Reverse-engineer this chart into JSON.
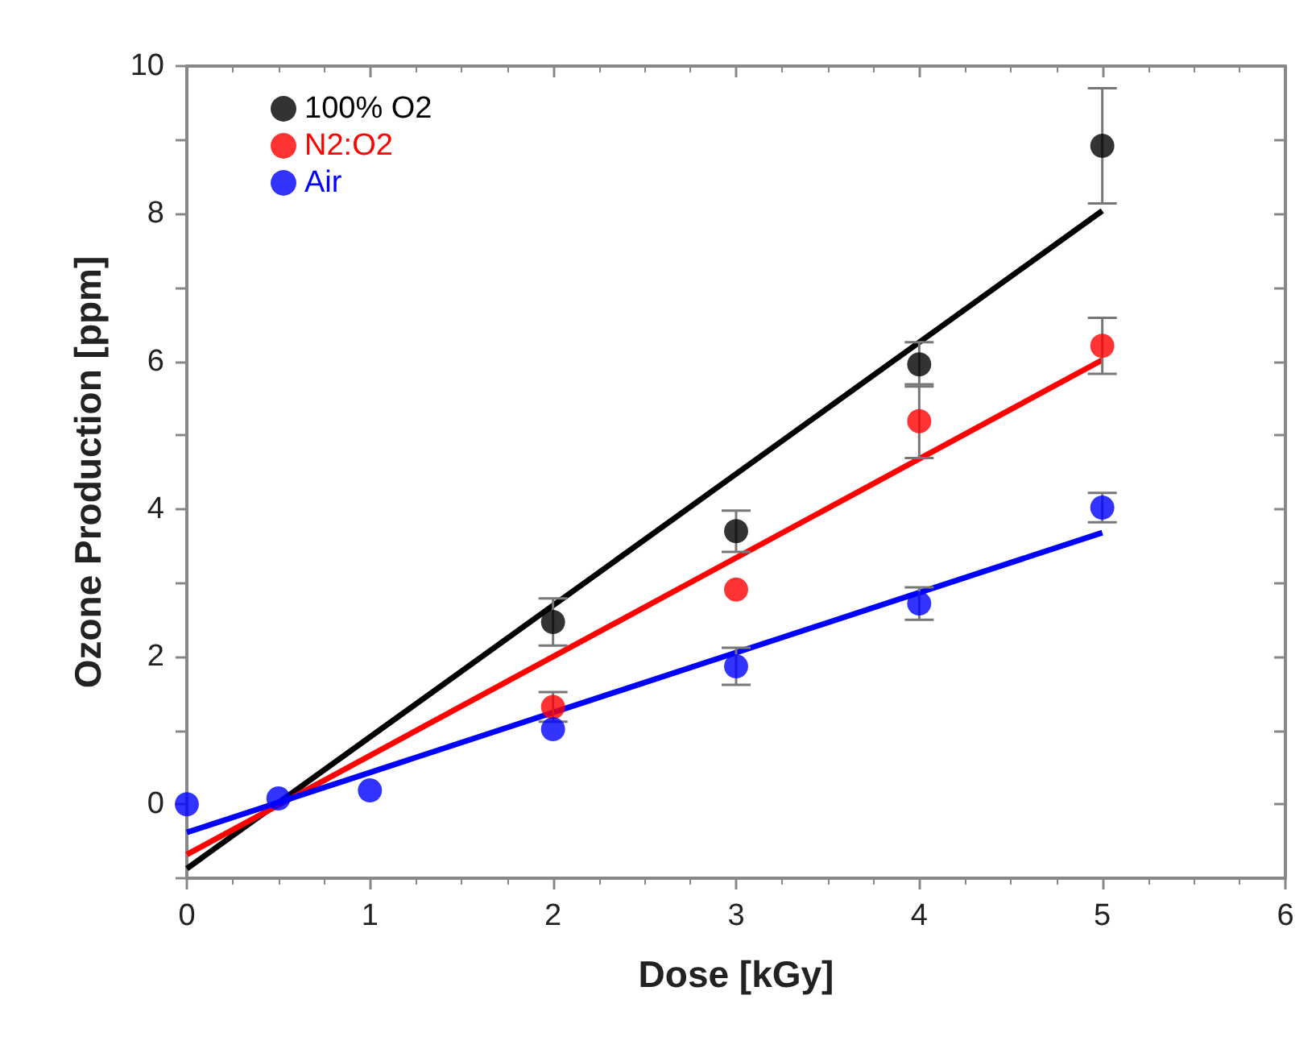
{
  "chart_data": {
    "type": "scatter",
    "xlabel": "Dose [kGy]",
    "ylabel": "Ozone Production [ppm]",
    "xlim": [
      0,
      6
    ],
    "xticks": [
      0,
      1,
      2,
      3,
      4,
      5,
      6
    ],
    "ylim": [
      -1,
      10
    ],
    "yticks": [
      {
        "value": -1,
        "label": null
      },
      0,
      {
        "value": 1,
        "label": null
      },
      2,
      {
        "value": 3,
        "label": null
      },
      4,
      {
        "value": 5,
        "label": null
      },
      6,
      {
        "value": 7,
        "label": null
      },
      8,
      {
        "value": 9,
        "label": null
      },
      10
    ],
    "grid": false,
    "legend": "top left",
    "marker": "circle",
    "series": [
      {
        "name": "100% O2",
        "color": "#000000",
        "x": [
          2,
          3,
          4,
          5
        ],
        "values": [
          2.47,
          3.7,
          5.96,
          8.92
        ],
        "errors": [
          0.32,
          0.28,
          0.3,
          0.78
        ]
      },
      {
        "name": "N2:O2",
        "color": "#ff0000",
        "x": [
          2,
          3,
          4,
          5
        ],
        "values": [
          1.32,
          2.91,
          5.19,
          6.21
        ],
        "errors": [
          0.2,
          null,
          0.5,
          0.38
        ]
      },
      {
        "name": "Air",
        "color": "#0000ff",
        "x": [
          0,
          0.5,
          1,
          2,
          3,
          4,
          5
        ],
        "values": [
          0,
          0.08,
          0.19,
          1.02,
          1.87,
          2.72,
          4.02
        ],
        "errors": [
          null,
          null,
          null,
          null,
          0.25,
          0.22,
          0.2
        ]
      },
      {
        "type": "line",
        "marker": "none",
        "color": "#000000",
        "x": [
          0,
          5
        ],
        "values": [
          -0.87,
          8.04
        ]
      },
      {
        "type": "line",
        "marker": "none",
        "color": "#ff0000",
        "x": [
          0,
          5
        ],
        "values": [
          -0.68,
          6.02
        ]
      },
      {
        "type": "line",
        "marker": "none",
        "color": "#0000ff",
        "x": [
          0,
          5
        ],
        "values": [
          -0.38,
          3.68
        ]
      }
    ]
  }
}
